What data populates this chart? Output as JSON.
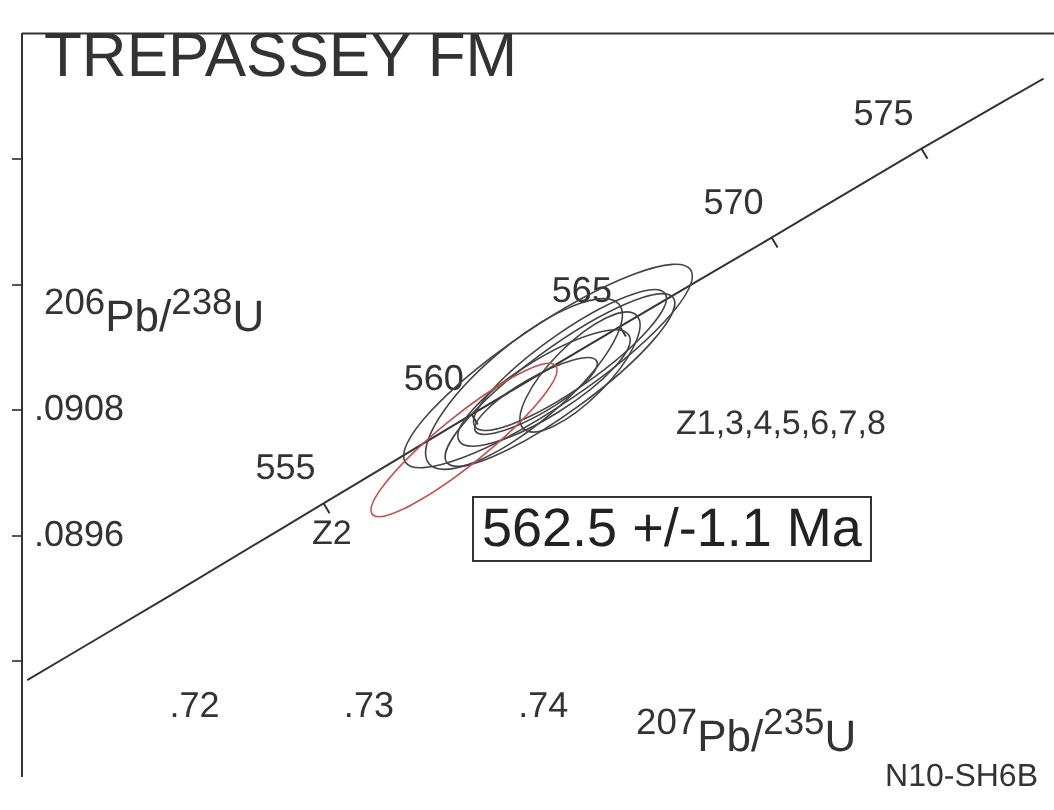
{
  "chart_data": {
    "type": "line",
    "title": "TREPASSEY FM",
    "xlabel": "$^{207}$Pb/$^{235}$U",
    "ylabel": "$^{206}$Pb/$^{238}$U",
    "xlim": [
      0.7101,
      0.7693
    ],
    "ylim": [
      0.0873,
      0.0944
    ],
    "xticks": [
      {
        "value": 0.72,
        "label": ".72"
      },
      {
        "value": 0.73,
        "label": ".73"
      },
      {
        "value": 0.74,
        "label": ".74"
      }
    ],
    "yticks": [
      {
        "value": 0.0884,
        "label": null
      },
      {
        "value": 0.0896,
        "label": ".0896"
      },
      {
        "value": 0.0908,
        "label": ".0908"
      },
      {
        "value": 0.092,
        "label": null
      },
      {
        "value": 0.0932,
        "label": null
      }
    ],
    "grid": false,
    "legend": false,
    "marker": "none",
    "line_style": "solid",
    "series": [
      {
        "color": "#333333",
        "x": [
          0.7104,
          0.7189,
          0.7274,
          0.7359,
          0.7444,
          0.7531,
          0.7617,
          0.7687
        ],
        "values": [
          0.08822,
          0.08906,
          0.08991,
          0.09076,
          0.0916,
          0.09245,
          0.0933,
          0.09397
        ]
      }
    ],
    "annotations": [
      {
        "text": "555",
        "x": 0.7274,
        "y": 0.08991
      },
      {
        "text": "560",
        "x": 0.7359,
        "y": 0.09076
      },
      {
        "text": "565",
        "x": 0.7444,
        "y": 0.0916
      },
      {
        "text": "570",
        "x": 0.7531,
        "y": 0.09245
      },
      {
        "text": "575",
        "x": 0.7617,
        "y": 0.0933
      },
      "Z2",
      "Z1,3,4,5,6,7,8",
      "562.5 +/-1.1 Ma",
      "N10-SH6B"
    ]
  }
}
